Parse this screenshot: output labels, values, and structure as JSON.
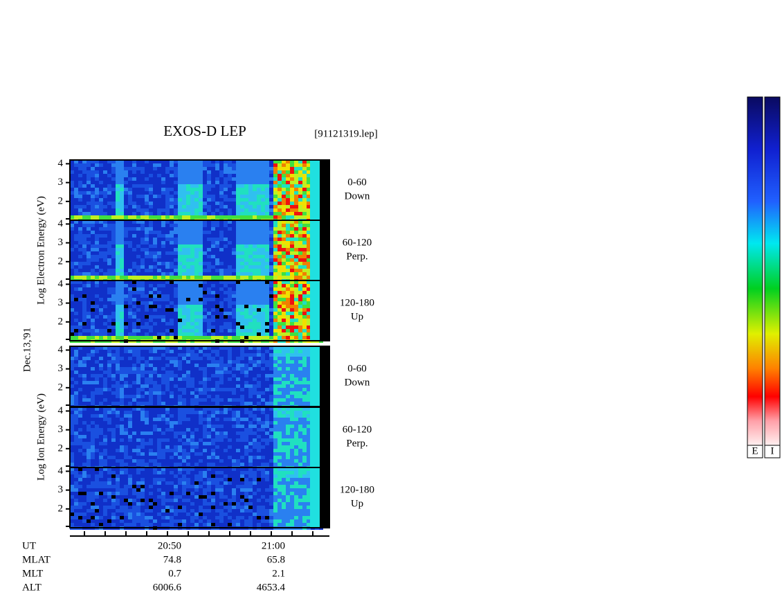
{
  "title": "EXOS-D LEP",
  "file_label": "[91121319.lep]",
  "date": "Dec.13,'91",
  "ylim": [
    1,
    4.2
  ],
  "yticks": [
    2,
    3,
    4
  ],
  "groups": [
    {
      "ylabel": "Log Electron Energy (eV)",
      "panels": [
        {
          "angle": "0-60",
          "direction": "Down"
        },
        {
          "angle": "60-120",
          "direction": "Perp."
        },
        {
          "angle": "120-180",
          "direction": "Up"
        }
      ]
    },
    {
      "ylabel": "Log Ion Energy (eV)",
      "panels": [
        {
          "angle": "0-60",
          "direction": "Down"
        },
        {
          "angle": "60-120",
          "direction": "Perp."
        },
        {
          "angle": "120-180",
          "direction": "Up"
        }
      ]
    }
  ],
  "orbit_rows": [
    [
      "UT",
      "20:50",
      "21:00"
    ],
    [
      "MLAT",
      "74.8",
      "65.8"
    ],
    [
      "MLT",
      "0.7",
      "2.1"
    ],
    [
      "ALT",
      "6006.6",
      "4653.4"
    ]
  ],
  "colorbar_labels": [
    "E",
    "I"
  ]
}
